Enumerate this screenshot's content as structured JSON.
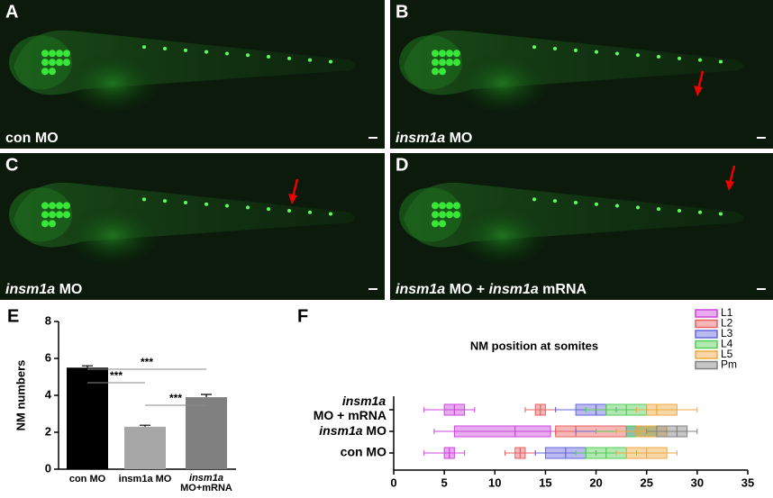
{
  "panels": [
    {
      "letter": "A",
      "caption": [
        {
          "text": "con MO"
        }
      ]
    },
    {
      "letter": "B",
      "caption": [
        {
          "text": "insm1a",
          "italic": true
        },
        {
          "text": " MO"
        }
      ]
    },
    {
      "letter": "C",
      "caption": [
        {
          "text": "insm1a",
          "italic": true
        },
        {
          "text": " MO"
        }
      ]
    },
    {
      "letter": "D",
      "caption": [
        {
          "text": "insm1a",
          "italic": true
        },
        {
          "text": " MO + "
        },
        {
          "text": "insm1a",
          "italic": true
        },
        {
          "text": " mRNA"
        }
      ]
    }
  ],
  "chart_data": [
    {
      "type": "bar",
      "label": "E",
      "ylabel": "NM numbers",
      "categories": [
        "con MO",
        "insm1a MO",
        "insm1a MO+mRNA"
      ],
      "values": [
        5.5,
        2.3,
        3.9
      ],
      "errors": [
        0.1,
        0.08,
        0.15
      ],
      "colors": [
        "#000000",
        "#a6a6a6",
        "#808080"
      ],
      "ylim": [
        0,
        8
      ],
      "yticks": [
        0,
        2,
        4,
        6,
        8
      ],
      "annotations": [
        "***",
        "***",
        "***"
      ]
    },
    {
      "type": "box",
      "label": "F",
      "title": "NM position at somites",
      "categories": [
        "insm1a MO + mRNA",
        "insm1a MO",
        "con MO"
      ],
      "xlim": [
        0,
        35
      ],
      "xticks": [
        0,
        5,
        10,
        15,
        20,
        25,
        30,
        35
      ],
      "series": [
        {
          "name": "L1",
          "color": "#cc44dd",
          "values": [
            [
              3,
              5,
              6,
              7,
              8
            ],
            [
              4,
              6,
              12,
              15.5,
              16
            ],
            [
              3,
              5,
              5.5,
              6,
              7
            ]
          ]
        },
        {
          "name": "L2",
          "color": "#e86060",
          "values": [
            [
              13,
              14,
              14.5,
              15,
              16
            ],
            [
              16,
              16,
              18,
              23,
              26
            ],
            [
              11,
              12,
              12.5,
              13,
              14
            ]
          ]
        },
        {
          "name": "L3",
          "color": "#6666dd",
          "values": [
            [
              16,
              18,
              20,
              21,
              22
            ],
            [
              18,
              23,
              24,
              26,
              27
            ],
            [
              14,
              15,
              17,
              19,
              20
            ]
          ]
        },
        {
          "name": "L4",
          "color": "#55cc55",
          "values": [
            [
              19,
              21,
              23,
              25,
              26
            ],
            [
              20,
              23,
              25,
              26,
              28
            ],
            [
              18,
              19,
              21,
              23,
              24
            ]
          ]
        },
        {
          "name": "L5",
          "color": "#f0a840",
          "values": [
            [
              24,
              25,
              26,
              28,
              30
            ],
            [
              22,
              24,
              25,
              27,
              29
            ],
            [
              22,
              23,
              25,
              27,
              28
            ]
          ]
        },
        {
          "name": "Pm",
          "color": "#808080",
          "values": [
            null,
            [
              25,
              26,
              28,
              29,
              30
            ],
            null
          ]
        }
      ]
    }
  ]
}
